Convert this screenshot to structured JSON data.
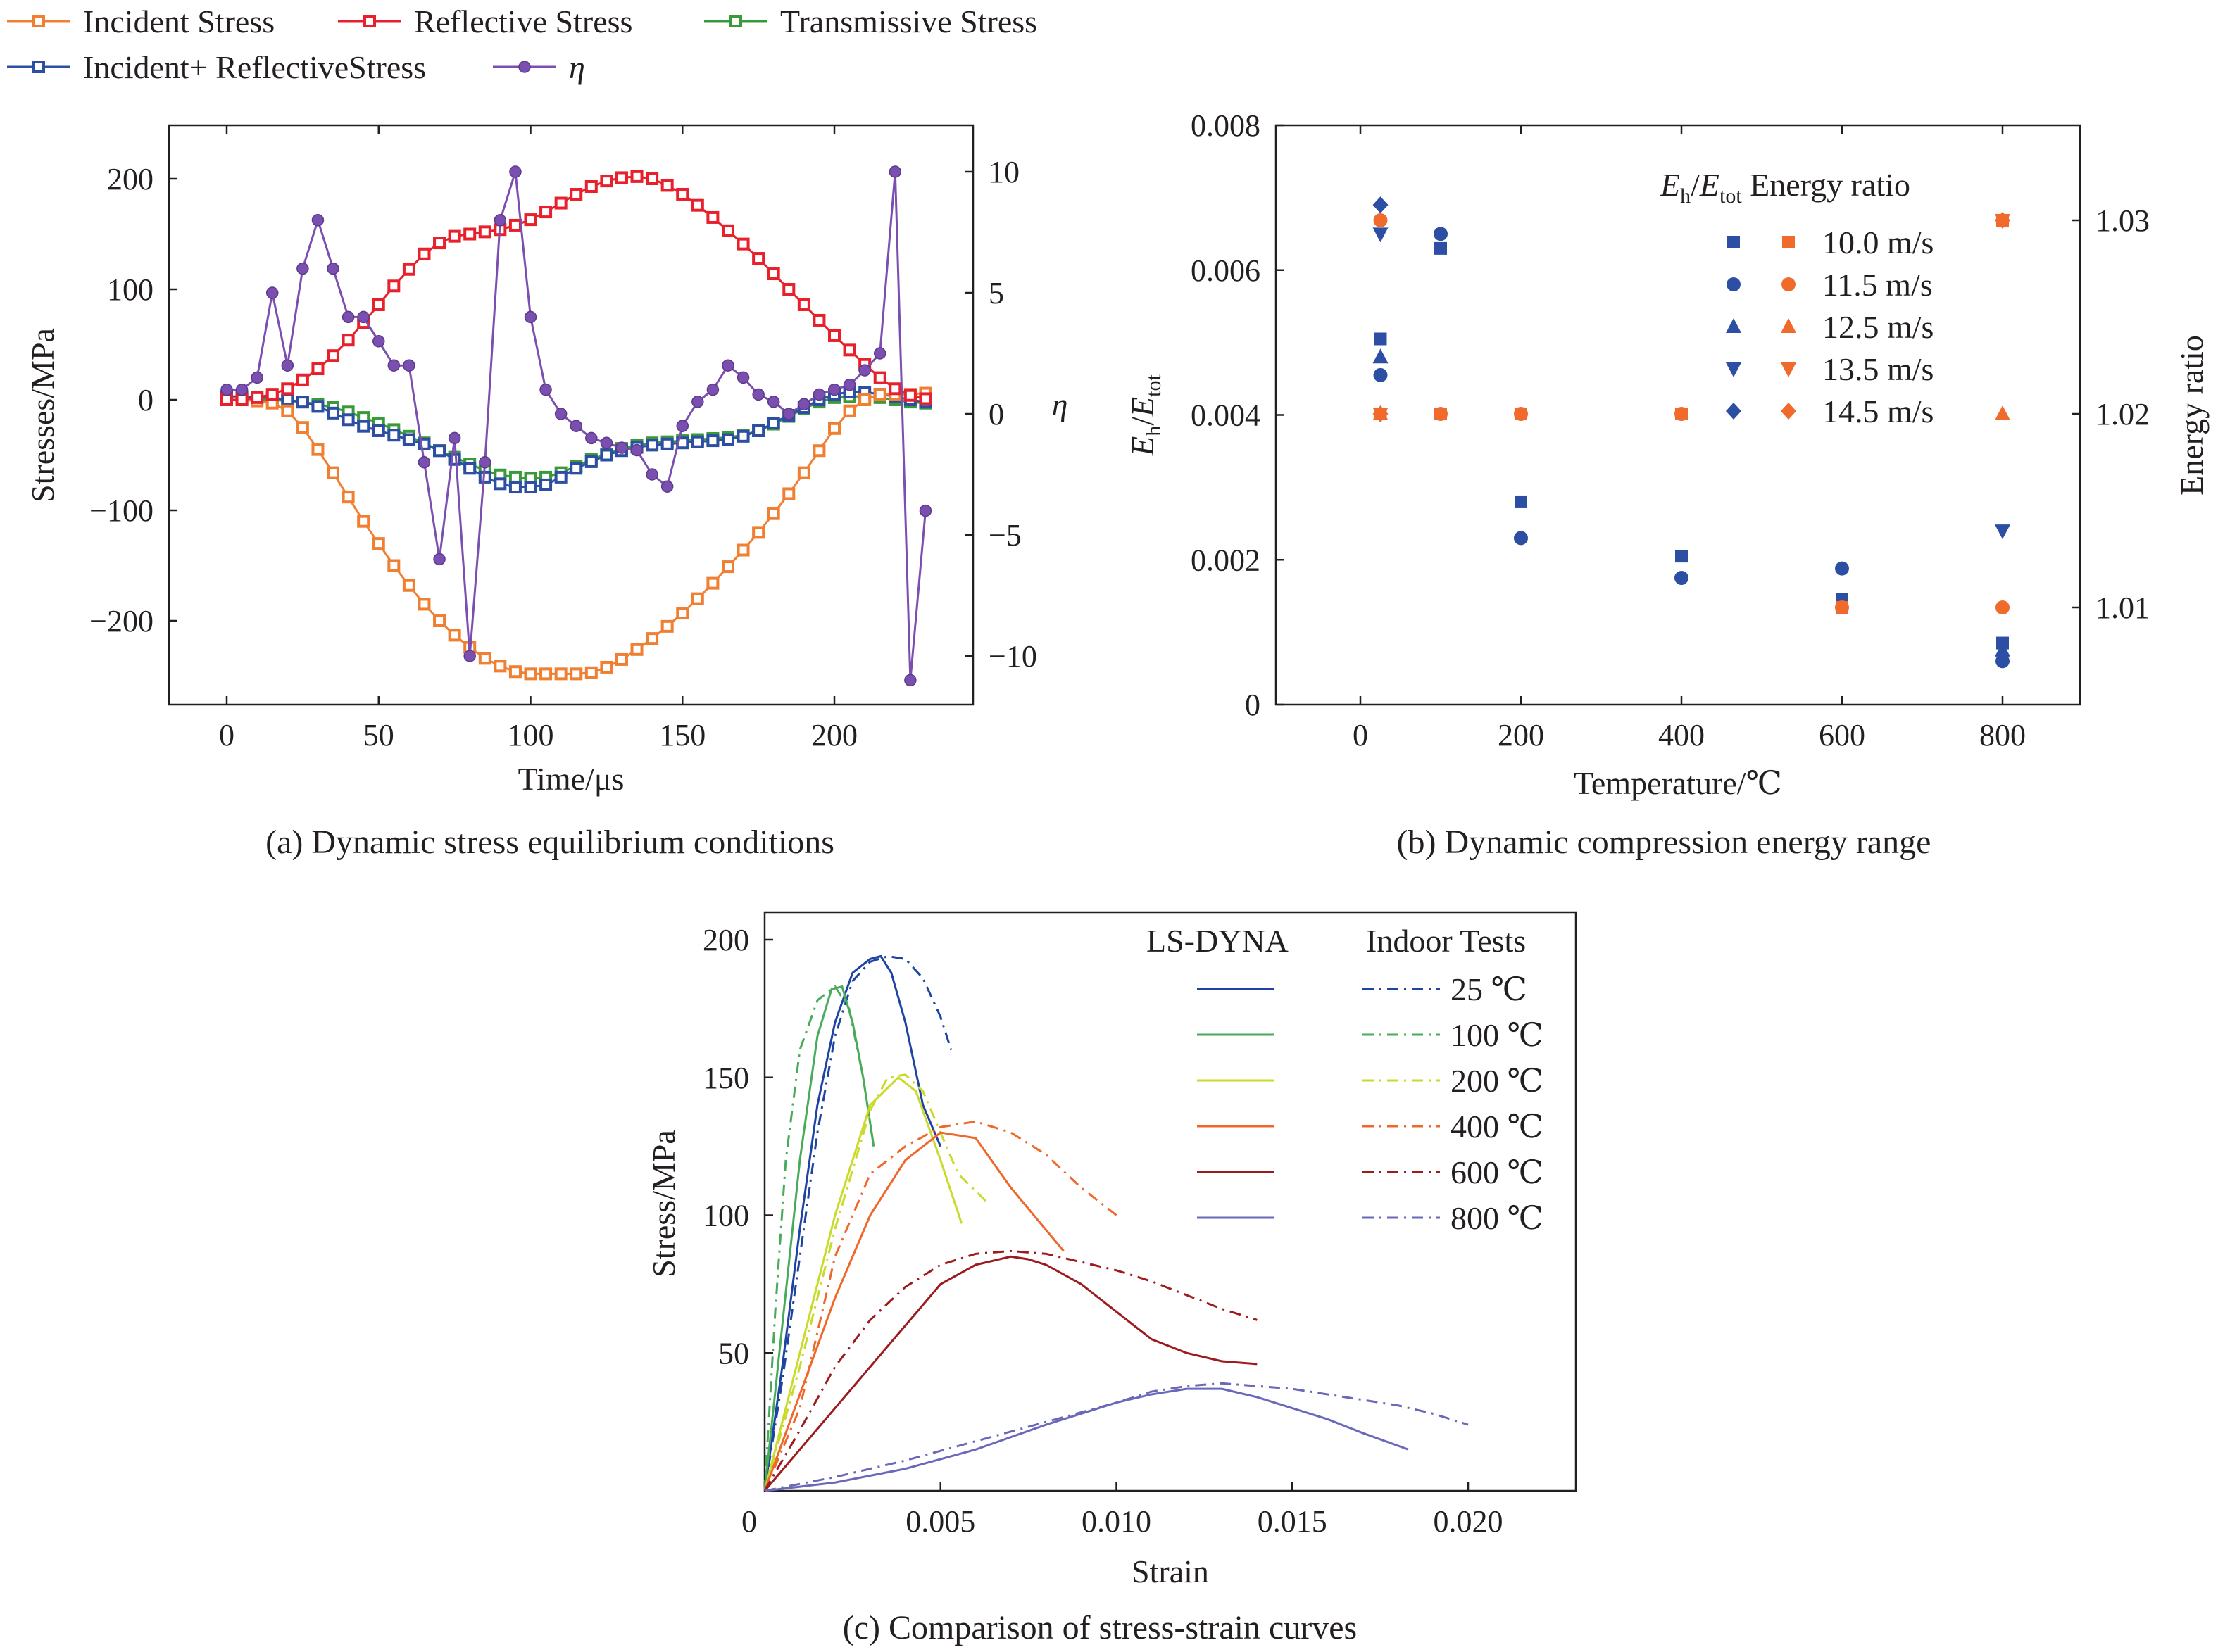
{
  "colors": {
    "incident": "#f07f32",
    "reflective": "#e8202b",
    "transmissive": "#3a9a3a",
    "inc_ref": "#2d4fa3",
    "eta": "#7b4fb0",
    "blue": "#2d4fa3",
    "orange": "#f06a2b",
    "c25": "#1f43a3",
    "c100": "#47ab5a",
    "c200": "#c9da2a",
    "c400": "#f0672a",
    "c600": "#9c1b1f",
    "c800": "#6a68b8"
  },
  "chart_data": [
    {
      "id": "a",
      "type": "line",
      "caption": "(a) Dynamic stress equilibrium conditions",
      "xlabel": "Time/μs",
      "ylabel": "Stresses/MPa",
      "y2label": "η",
      "xlim": [
        -10,
        245
      ],
      "ylim": [
        -275,
        250
      ],
      "y2lim": [
        -12,
        12
      ],
      "xticks": [
        0,
        50,
        100,
        150,
        200
      ],
      "yticks": [
        -200,
        -100,
        0,
        100,
        200
      ],
      "y2ticks": [
        -10,
        -5,
        0,
        5,
        10
      ],
      "legend_labels": [
        "Incident Stress",
        "Reflective Stress",
        "Transmissive Stress",
        "Incident+ ReflectiveStress",
        "η"
      ],
      "series": [
        {
          "name": "Incident Stress",
          "marker": "square",
          "x_start": 0,
          "x_step": 5,
          "values": [
            0,
            0,
            -1,
            -3,
            -10,
            -25,
            -45,
            -66,
            -88,
            -110,
            -130,
            -150,
            -168,
            -185,
            -200,
            -213,
            -224,
            -234,
            -241,
            -246,
            -248,
            -248,
            -248,
            -248,
            -247,
            -242,
            -235,
            -226,
            -216,
            -205,
            -193,
            -180,
            -166,
            -151,
            -136,
            -120,
            -103,
            -85,
            -66,
            -46,
            -26,
            -10,
            0,
            5,
            5,
            5,
            6
          ]
        },
        {
          "name": "Reflective Stress",
          "marker": "square",
          "x_start": 0,
          "x_step": 5,
          "values": [
            0,
            0,
            2,
            5,
            10,
            18,
            28,
            40,
            54,
            70,
            86,
            103,
            118,
            132,
            142,
            148,
            150,
            152,
            154,
            158,
            163,
            170,
            178,
            186,
            193,
            198,
            201,
            202,
            200,
            194,
            186,
            176,
            165,
            153,
            141,
            128,
            114,
            100,
            86,
            72,
            58,
            45,
            32,
            20,
            10,
            4,
            1
          ]
        },
        {
          "name": "Transmissive Stress",
          "marker": "square",
          "x_start": 0,
          "x_step": 5,
          "values": [
            0,
            0,
            0,
            0,
            -1,
            -2,
            -4,
            -7,
            -11,
            -16,
            -21,
            -27,
            -33,
            -39,
            -46,
            -52,
            -58,
            -64,
            -68,
            -70,
            -71,
            -70,
            -66,
            -60,
            -54,
            -49,
            -44,
            -41,
            -39,
            -38,
            -37,
            -36,
            -35,
            -34,
            -32,
            -28,
            -22,
            -15,
            -8,
            -2,
            2,
            3,
            3,
            2,
            0,
            -2,
            -3
          ]
        },
        {
          "name": "Incident+ ReflectiveStress",
          "marker": "square",
          "x_start": 0,
          "x_step": 5,
          "values": [
            3,
            3,
            2,
            2,
            0,
            -2,
            -6,
            -12,
            -18,
            -24,
            -28,
            -32,
            -36,
            -40,
            -46,
            -54,
            -62,
            -70,
            -76,
            -79,
            -79,
            -77,
            -70,
            -62,
            -56,
            -50,
            -46,
            -43,
            -41,
            -40,
            -39,
            -38,
            -37,
            -36,
            -33,
            -28,
            -21,
            -14,
            -7,
            0,
            5,
            7,
            7,
            5,
            3,
            0,
            -2
          ]
        },
        {
          "name": "η",
          "marker": "circle",
          "axis": "right",
          "x": [
            0,
            5,
            10,
            15,
            20,
            25,
            30,
            35,
            40,
            45,
            50,
            55,
            60,
            65,
            70,
            75,
            80,
            85,
            90,
            95,
            100,
            105,
            110,
            115,
            120,
            125,
            130,
            135,
            140,
            145,
            150,
            155,
            160,
            165,
            170,
            175,
            180,
            185,
            190,
            195,
            200,
            205,
            210,
            215,
            220,
            225,
            230
          ],
          "values": [
            1.0,
            1.0,
            1.5,
            5.0,
            2.0,
            6.0,
            8.0,
            6.0,
            4.0,
            4.0,
            3.0,
            2.0,
            2.0,
            -2.0,
            -6.0,
            -1.0,
            -10.0,
            -2.0,
            8.0,
            10.0,
            4.0,
            1.0,
            0.0,
            -0.5,
            -1.0,
            -1.2,
            -1.4,
            -1.5,
            -2.5,
            -3.0,
            -0.5,
            0.5,
            1.0,
            2.0,
            1.5,
            0.8,
            0.5,
            0.0,
            0.4,
            0.8,
            1.0,
            1.2,
            1.8,
            2.5,
            10.0,
            -11.0,
            -4.0
          ]
        }
      ]
    },
    {
      "id": "b",
      "type": "scatter",
      "caption": "(b) Dynamic compression energy range",
      "xlabel": "Temperature/℃",
      "ylabel": "E_h/E_tot",
      "y2label": "Energy ratio",
      "ylim": [
        0,
        0.008
      ],
      "y2lim": [
        1.0049,
        1.035
      ],
      "yticks": [
        0,
        0.002,
        0.004,
        0.006,
        0.008
      ],
      "ytick_labels": [
        "0",
        "0.002",
        "0.004",
        "0.006",
        "0.008"
      ],
      "y2ticks": [
        1.01,
        1.02,
        1.03
      ],
      "y2tick_labels": [
        "1.01",
        "1.02",
        "1.03"
      ],
      "categories": [
        "0",
        "200",
        "400",
        "600",
        "800"
      ],
      "legend_header": [
        "E_h/E_tot",
        "Energy ratio"
      ],
      "series": [
        {
          "name": "10.0 m/s",
          "marker": "square",
          "eh_etot": [
            0.00505,
            0.0063,
            0.0028,
            0.00205,
            0.00145,
            0.00085
          ],
          "energy_ratio": [
            1.02,
            1.02,
            1.02,
            1.02,
            1.01,
            1.03
          ]
        },
        {
          "name": "11.5 m/s",
          "marker": "circle",
          "eh_etot": [
            0.00455,
            0.0065,
            0.0023,
            0.00175,
            0.00188,
            0.0006
          ],
          "energy_ratio": [
            1.03,
            1.02,
            1.02,
            1.02,
            1.01,
            1.01
          ]
        },
        {
          "name": "12.5 m/s",
          "marker": "triangle-up",
          "eh_etot": [
            0.0048,
            null,
            null,
            null,
            null,
            0.00075
          ],
          "energy_ratio": [
            1.02,
            null,
            null,
            null,
            null,
            1.02
          ]
        },
        {
          "name": "13.5 m/s",
          "marker": "triangle-down",
          "eh_etot": [
            0.0065,
            null,
            null,
            null,
            null,
            0.0024
          ],
          "energy_ratio": [
            1.02,
            null,
            null,
            null,
            null,
            1.03
          ]
        },
        {
          "name": "14.5 m/s",
          "marker": "diamond",
          "eh_etot": [
            0.0069,
            null,
            null,
            null,
            null,
            null
          ],
          "energy_ratio": [
            1.02,
            null,
            null,
            null,
            null,
            1.03
          ]
        }
      ],
      "x_positions": [
        25,
        100,
        200,
        400,
        600,
        800
      ]
    },
    {
      "id": "c",
      "type": "line",
      "caption": "(c) Comparison of stress-strain curves",
      "xlabel": "Strain",
      "ylabel": "Stress/MPa",
      "xlim": [
        0,
        0.023
      ],
      "ylim": [
        0,
        205
      ],
      "xticks": [
        0,
        0.005,
        0.01,
        0.015,
        0.02
      ],
      "xtick_labels": [
        "0",
        "0.005",
        "0.010",
        "0.015",
        "0.020"
      ],
      "yticks": [
        50,
        100,
        150,
        200
      ],
      "legend_header": [
        "LS-DYNA",
        "Indoor Tests"
      ],
      "legend_labels": [
        "25 ℃",
        "100 ℃",
        "200 ℃",
        "400 ℃",
        "600 ℃",
        "800 ℃"
      ],
      "series": [
        {
          "name": "25 ℃",
          "source": "LS-DYNA",
          "x": [
            0,
            0.0005,
            0.001,
            0.0015,
            0.002,
            0.0025,
            0.003,
            0.0033,
            0.0036,
            0.004,
            0.0045,
            0.005
          ],
          "y": [
            0,
            45,
            95,
            140,
            170,
            188,
            193,
            194,
            188,
            170,
            140,
            125
          ]
        },
        {
          "name": "25 ℃",
          "source": "Indoor Tests",
          "x": [
            0,
            0.0005,
            0.001,
            0.0015,
            0.002,
            0.0025,
            0.003,
            0.0035,
            0.004,
            0.0045,
            0.005,
            0.0053
          ],
          "y": [
            0,
            40,
            85,
            130,
            165,
            185,
            192,
            194,
            193,
            186,
            172,
            160
          ]
        },
        {
          "name": "100 ℃",
          "source": "LS-DYNA",
          "x": [
            0,
            0.0005,
            0.001,
            0.0015,
            0.0019,
            0.0022,
            0.0025,
            0.0028,
            0.0031
          ],
          "y": [
            0,
            60,
            120,
            165,
            182,
            183,
            170,
            150,
            125
          ]
        },
        {
          "name": "100 ℃",
          "source": "Indoor Tests",
          "x": [
            0,
            0.0003,
            0.0006,
            0.001,
            0.0015,
            0.002,
            0.0024,
            0.0028,
            0.0031
          ],
          "y": [
            0,
            65,
            120,
            160,
            178,
            183,
            175,
            150,
            125
          ]
        },
        {
          "name": "200 ℃",
          "source": "LS-DYNA",
          "x": [
            0,
            0.001,
            0.002,
            0.003,
            0.0038,
            0.0043,
            0.005,
            0.0056
          ],
          "y": [
            0,
            50,
            100,
            140,
            150,
            145,
            120,
            97
          ]
        },
        {
          "name": "200 ℃",
          "source": "Indoor Tests",
          "x": [
            0,
            0.001,
            0.002,
            0.003,
            0.0035,
            0.004,
            0.0045,
            0.005,
            0.0055,
            0.0063
          ],
          "y": [
            0,
            45,
            95,
            138,
            150,
            151,
            145,
            130,
            115,
            105
          ]
        },
        {
          "name": "400 ℃",
          "source": "LS-DYNA",
          "x": [
            0,
            0.001,
            0.002,
            0.003,
            0.004,
            0.005,
            0.006,
            0.007,
            0.0085
          ],
          "y": [
            0,
            35,
            70,
            100,
            120,
            130,
            128,
            110,
            87
          ]
        },
        {
          "name": "400 ℃",
          "source": "Indoor Tests",
          "x": [
            0,
            0.001,
            0.002,
            0.003,
            0.004,
            0.005,
            0.006,
            0.007,
            0.008,
            0.009,
            0.01
          ],
          "y": [
            0,
            30,
            85,
            115,
            125,
            132,
            134,
            130,
            122,
            110,
            100
          ]
        },
        {
          "name": "600 ℃",
          "source": "LS-DYNA",
          "x": [
            0,
            0.002,
            0.004,
            0.005,
            0.006,
            0.007,
            0.0075,
            0.008,
            0.009,
            0.01,
            0.011,
            0.012,
            0.013,
            0.014
          ],
          "y": [
            0,
            30,
            60,
            75,
            82,
            85,
            84,
            82,
            75,
            65,
            55,
            50,
            47,
            46
          ]
        },
        {
          "name": "600 ℃",
          "source": "Indoor Tests",
          "x": [
            0,
            0.001,
            0.002,
            0.003,
            0.004,
            0.005,
            0.006,
            0.007,
            0.008,
            0.009,
            0.01,
            0.011,
            0.012,
            0.013,
            0.014
          ],
          "y": [
            0,
            22,
            45,
            62,
            74,
            82,
            86,
            87,
            86,
            83,
            80,
            76,
            71,
            66,
            62
          ]
        },
        {
          "name": "800 ℃",
          "source": "LS-DYNA",
          "x": [
            0,
            0.002,
            0.004,
            0.006,
            0.008,
            0.01,
            0.011,
            0.012,
            0.013,
            0.014,
            0.015,
            0.016,
            0.017,
            0.0183
          ],
          "y": [
            0,
            3,
            8,
            15,
            24,
            32,
            35,
            37,
            37,
            34,
            30,
            26,
            21,
            15
          ]
        },
        {
          "name": "800 ℃",
          "source": "Indoor Tests",
          "x": [
            0,
            0.002,
            0.004,
            0.006,
            0.008,
            0.01,
            0.011,
            0.012,
            0.013,
            0.014,
            0.015,
            0.016,
            0.017,
            0.018,
            0.019,
            0.02
          ],
          "y": [
            0,
            5,
            11,
            18,
            25,
            32,
            36,
            38,
            39,
            38,
            37,
            35,
            33,
            31,
            28,
            24
          ]
        }
      ]
    }
  ]
}
